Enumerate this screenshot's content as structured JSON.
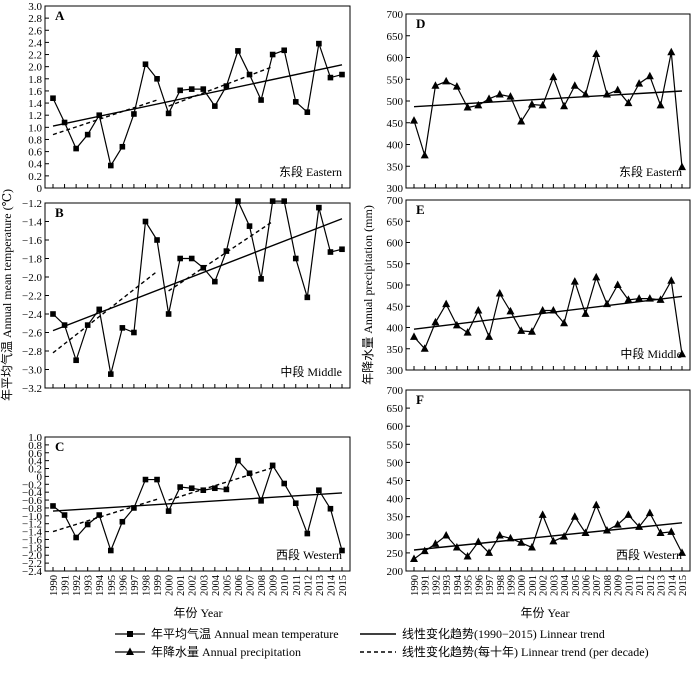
{
  "figure": {
    "left_ylabel": "年平均气温 Annual mean temperature (℃)",
    "right_ylabel": "年降水量 Annual precipitation (mm)",
    "xlabel": "年份 Year",
    "years": [
      "1990",
      "1991",
      "1992",
      "1993",
      "1994",
      "1995",
      "1996",
      "1997",
      "1998",
      "1999",
      "2000",
      "2001",
      "2002",
      "2003",
      "2004",
      "2005",
      "2006",
      "2007",
      "2008",
      "2009",
      "2010",
      "2011",
      "2012",
      "2013",
      "2014",
      "2015"
    ],
    "legend": {
      "temperature": "年平均气温 Annual mean temperature",
      "precipitation": "年降水量 Annual precipitation",
      "linear_trend": "线性变化趋势(1990−2015) Linnear trend",
      "decade_trend": "线性变化趋势(每十年) Linnear trend (per decade)"
    }
  },
  "chart_data": [
    {
      "type": "line",
      "panel": "A",
      "region_label": "东段 Eastern",
      "ylim": [
        0,
        3.0
      ],
      "yticks": [
        "0",
        "0.2",
        "0.4",
        "0.6",
        "0.8",
        "1.0",
        "1.2",
        "1.4",
        "1.6",
        "1.8",
        "2.0",
        "2.2",
        "2.4",
        "2.6",
        "2.8",
        "3.0"
      ],
      "values": [
        1.48,
        1.08,
        0.65,
        0.88,
        1.2,
        0.37,
        0.68,
        1.22,
        2.04,
        1.8,
        1.23,
        1.61,
        1.63,
        1.63,
        1.35,
        1.68,
        2.26,
        1.87,
        1.45,
        2.2,
        2.27,
        1.42,
        1.25,
        2.38,
        1.82,
        1.87
      ],
      "trend": [
        1.02,
        2.03
      ],
      "decade_trends": [
        [
          0,
          9,
          0.88,
          1.45
        ],
        [
          10,
          19,
          1.35,
          2.0
        ]
      ]
    },
    {
      "type": "line",
      "panel": "B",
      "region_label": "中段 Middle",
      "ylim": [
        -3.2,
        -1.2
      ],
      "yticks": [
        "−1.2",
        "−1.4",
        "−1.6",
        "−1.8",
        "−2.0",
        "−2.2",
        "−2.4",
        "−2.6",
        "−2.8",
        "−3.0",
        "−3.2"
      ],
      "values": [
        -2.4,
        -2.52,
        -2.9,
        -2.52,
        -2.35,
        -3.05,
        -2.55,
        -2.6,
        -1.4,
        -1.6,
        -2.4,
        -1.8,
        -1.8,
        -1.9,
        -2.05,
        -1.72,
        -1.18,
        -1.45,
        -2.02,
        -1.18,
        -1.18,
        -1.8,
        -2.22,
        -1.25,
        -1.73,
        -1.7
      ],
      "trend": [
        -2.58,
        -1.37
      ],
      "decade_trends": [
        [
          0,
          9,
          -2.82,
          -1.94
        ],
        [
          10,
          19,
          -2.15,
          -1.4
        ]
      ]
    },
    {
      "type": "line",
      "panel": "C",
      "region_label": "西段 Western",
      "ylim": [
        -2.4,
        1.0
      ],
      "yticks": [
        "1.0",
        "0.8",
        "0.6",
        "0.4",
        "0.2",
        "0",
        "−0.2",
        "−0.4",
        "−0.6",
        "−0.8",
        "−1.0",
        "−1.2",
        "−1.4",
        "−1.6",
        "−1.8",
        "−2.0",
        "−2.2",
        "−2.4"
      ],
      "values": [
        -0.75,
        -0.98,
        -1.55,
        -1.22,
        -0.98,
        -1.88,
        -1.15,
        -0.8,
        -0.08,
        -0.08,
        -0.88,
        -0.27,
        -0.3,
        -0.35,
        -0.3,
        -0.33,
        0.4,
        0.08,
        -0.62,
        0.28,
        -0.18,
        -0.68,
        -1.45,
        -0.35,
        -0.82,
        -1.88
      ],
      "trend": [
        -0.88,
        -0.42
      ],
      "decade_trends": [
        [
          0,
          9,
          -1.4,
          -0.58
        ],
        [
          10,
          19,
          -0.6,
          0.22
        ]
      ]
    },
    {
      "type": "line",
      "panel": "D",
      "region_label": "东段 Eastern",
      "ylim": [
        300,
        700
      ],
      "yticks": [
        "300",
        "350",
        "400",
        "450",
        "500",
        "550",
        "600",
        "650",
        "700"
      ],
      "values": [
        455,
        375,
        535,
        545,
        533,
        485,
        490,
        505,
        515,
        510,
        453,
        492,
        490,
        555,
        488,
        535,
        515,
        608,
        515,
        525,
        495,
        540,
        557,
        490,
        612,
        348
      ],
      "trend": [
        487,
        523
      ]
    },
    {
      "type": "line",
      "panel": "E",
      "region_label": "中段 Middle",
      "ylim": [
        300,
        700
      ],
      "yticks": [
        "300",
        "350",
        "400",
        "450",
        "500",
        "550",
        "600",
        "650",
        "700"
      ],
      "values": [
        378,
        350,
        412,
        455,
        405,
        388,
        440,
        378,
        480,
        438,
        392,
        390,
        440,
        440,
        410,
        508,
        432,
        518,
        455,
        500,
        465,
        468,
        468,
        465,
        510,
        337
      ],
      "trend": [
        396,
        473
      ]
    },
    {
      "type": "line",
      "panel": "F",
      "region_label": "西段 Western",
      "ylim": [
        200,
        700
      ],
      "yticks": [
        "200",
        "250",
        "300",
        "350",
        "400",
        "450",
        "500",
        "550",
        "600",
        "650",
        "700"
      ],
      "values": [
        233,
        255,
        275,
        298,
        265,
        240,
        280,
        250,
        298,
        290,
        278,
        265,
        355,
        282,
        295,
        350,
        305,
        382,
        312,
        328,
        355,
        322,
        360,
        305,
        308,
        250
      ],
      "trend": [
        258,
        333
      ]
    }
  ]
}
